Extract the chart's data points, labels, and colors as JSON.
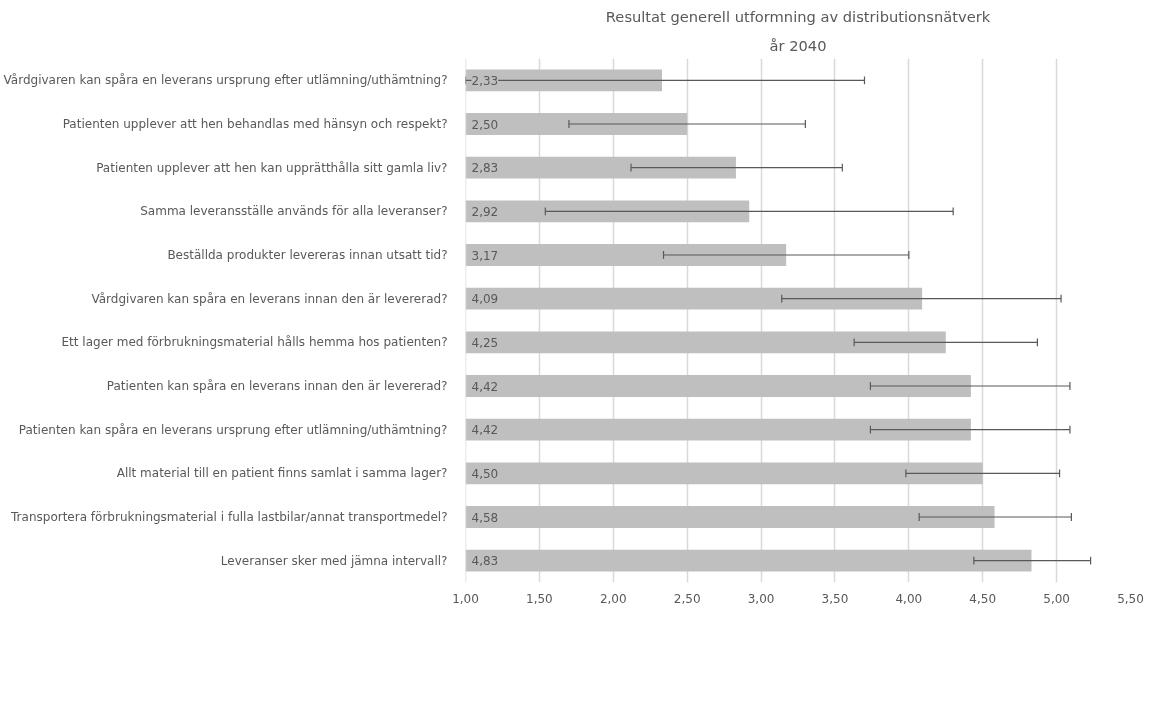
{
  "chart_data": {
    "type": "bar",
    "orientation": "horizontal",
    "title": "Resultat generell utformning av distributionsnätverk",
    "subtitle": "år 2040",
    "categories": [
      "Vårdgivaren kan spåra en leverans ursprung efter utlämning/uthämtning?",
      "Patienten upplever att hen behandlas med hänsyn och respekt?",
      "Patienten upplever att hen kan upprätthålla sitt gamla liv?",
      "Samma leveransställe används för alla leveranser?",
      "Beställda produkter levereras innan utsatt tid?",
      "Vårdgivaren kan spåra en leverans innan den är levererad?",
      "Ett lager med förbrukningsmaterial hålls hemma hos patienten?",
      "Patienten kan spåra en leverans innan den är levererad?",
      "Patienten kan spåra en leverans ursprung efter utlämning/uthämtning?",
      "Allt material till en patient finns samlat i samma lager?",
      "Transportera förbrukningsmaterial i fulla lastbilar/annat transportmedel?",
      "Leveranser sker med jämna intervall?"
    ],
    "values": [
      2.33,
      2.5,
      2.83,
      2.92,
      3.17,
      4.09,
      4.25,
      4.42,
      4.42,
      4.5,
      4.58,
      4.83
    ],
    "value_labels": [
      "2,33",
      "2,50",
      "2,83",
      "2,92",
      "3,17",
      "4,09",
      "4,25",
      "4,42",
      "4,42",
      "4,50",
      "4,58",
      "4,83"
    ],
    "errors": [
      [
        1.0,
        3.7
      ],
      [
        1.7,
        3.3
      ],
      [
        2.12,
        3.55
      ],
      [
        1.54,
        4.3
      ],
      [
        2.34,
        4.0
      ],
      [
        3.14,
        5.03
      ],
      [
        3.63,
        4.87
      ],
      [
        3.74,
        5.09
      ],
      [
        3.74,
        5.09
      ],
      [
        3.98,
        5.02
      ],
      [
        4.07,
        5.1
      ],
      [
        4.44,
        5.23
      ]
    ],
    "color": "#bfbfbf",
    "xlim": [
      1.0,
      5.5
    ],
    "xticks": [
      {
        "value": 1.0,
        "label": "1,00"
      },
      {
        "value": 1.5,
        "label": "1,50"
      },
      {
        "value": 2.0,
        "label": "2,00"
      },
      {
        "value": 2.5,
        "label": "2,50"
      },
      {
        "value": 3.0,
        "label": "3,00"
      },
      {
        "value": 3.5,
        "label": "3,50"
      },
      {
        "value": 4.0,
        "label": "4,00"
      },
      {
        "value": 4.5,
        "label": "4,50"
      },
      {
        "value": 5.0,
        "label": "5,00"
      },
      {
        "value": 5.5,
        "label": "5,50"
      }
    ],
    "grid": "x"
  }
}
